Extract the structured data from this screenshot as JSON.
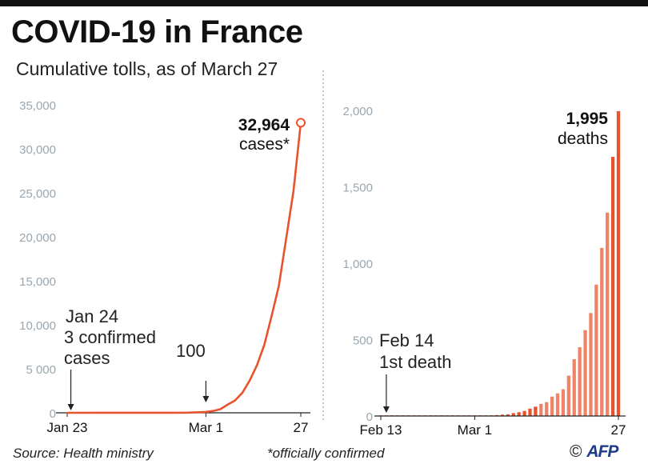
{
  "header": {
    "title": "COVID-19 in France",
    "subtitle": "Cumulative tolls, as of March 27"
  },
  "footer": {
    "source": "Source:  Health ministry",
    "note": "*officially confirmed",
    "copyright_symbol": "©",
    "brand": "AFP"
  },
  "colors": {
    "accent": "#e8532d",
    "bar_light": "#f6a88e",
    "axis_tick_label": "#9aa7b0",
    "axis": "#222222",
    "divider": "#888888"
  },
  "chart_data": [
    {
      "type": "line",
      "title": "",
      "xlabel": "",
      "ylabel": "",
      "x_tick_labels": [
        "Jan 23",
        "Mar 1",
        "27"
      ],
      "x_range": [
        "Jan 23",
        "Mar 27"
      ],
      "ylim": [
        0,
        35000
      ],
      "y_ticks": [
        0,
        5000,
        10000,
        15000,
        20000,
        25000,
        30000,
        35000
      ],
      "y_tick_labels": [
        "0",
        "5 000",
        "10,000",
        "15,000",
        "20,000",
        "25,000",
        "30,000",
        "35,000"
      ],
      "grid": false,
      "series": [
        {
          "x": [
            "Jan 23",
            "Jan 24",
            "Jan 31",
            "Feb 7",
            "Feb 14",
            "Feb 21",
            "Feb 25",
            "Mar 1",
            "Mar 3",
            "Mar 5",
            "Mar 7",
            "Mar 9",
            "Mar 11",
            "Mar 13",
            "Mar 15",
            "Mar 17",
            "Mar 19",
            "Mar 21",
            "Mar 23",
            "Mar 25",
            "Mar 27"
          ],
          "values": [
            0,
            3,
            6,
            11,
            11,
            12,
            14,
            100,
            212,
            420,
            949,
            1412,
            2281,
            3661,
            5423,
            7730,
            10995,
            14459,
            19856,
            25233,
            32964
          ]
        }
      ],
      "end_label": {
        "value": "32,964",
        "unit": "cases*"
      },
      "annotations": [
        {
          "x": "Jan 24",
          "lines": [
            "Jan 24",
            "3 confirmed",
            "cases"
          ]
        },
        {
          "x": "Mar 1",
          "lines": [
            "100"
          ]
        }
      ]
    },
    {
      "type": "bar",
      "title": "",
      "xlabel": "",
      "ylabel": "",
      "x_tick_labels": [
        "Feb 13",
        "Mar 1",
        "27"
      ],
      "ylim": [
        0,
        2000
      ],
      "y_ticks": [
        0,
        500,
        1000,
        1500,
        2000
      ],
      "y_tick_labels": [
        "0",
        "500",
        "1,000",
        "1,500",
        "2,000"
      ],
      "grid": false,
      "categories": [
        "Feb 13",
        "Feb 14",
        "Feb 15",
        "Feb 16",
        "Feb 17",
        "Feb 18",
        "Feb 19",
        "Feb 20",
        "Feb 21",
        "Feb 22",
        "Feb 23",
        "Feb 24",
        "Feb 25",
        "Feb 26",
        "Feb 27",
        "Feb 28",
        "Feb 29",
        "Mar 1",
        "Mar 2",
        "Mar 3",
        "Mar 4",
        "Mar 5",
        "Mar 6",
        "Mar 7",
        "Mar 8",
        "Mar 9",
        "Mar 10",
        "Mar 11",
        "Mar 12",
        "Mar 13",
        "Mar 14",
        "Mar 15",
        "Mar 16",
        "Mar 17",
        "Mar 18",
        "Mar 19",
        "Mar 20",
        "Mar 21",
        "Mar 22",
        "Mar 23",
        "Mar 24",
        "Mar 25",
        "Mar 26",
        "Mar 27"
      ],
      "values": [
        0,
        1,
        1,
        1,
        1,
        1,
        1,
        1,
        1,
        1,
        1,
        1,
        1,
        2,
        2,
        2,
        2,
        2,
        3,
        4,
        4,
        6,
        9,
        11,
        19,
        25,
        33,
        48,
        61,
        79,
        91,
        127,
        148,
        175,
        264,
        372,
        450,
        562,
        674,
        860,
        1100,
        1331,
        1696,
        1995
      ],
      "end_label": {
        "value": "1,995",
        "unit": "deaths"
      },
      "annotations": [
        {
          "x": "Feb 14",
          "lines": [
            "Feb 14",
            "1st death"
          ]
        }
      ]
    }
  ]
}
